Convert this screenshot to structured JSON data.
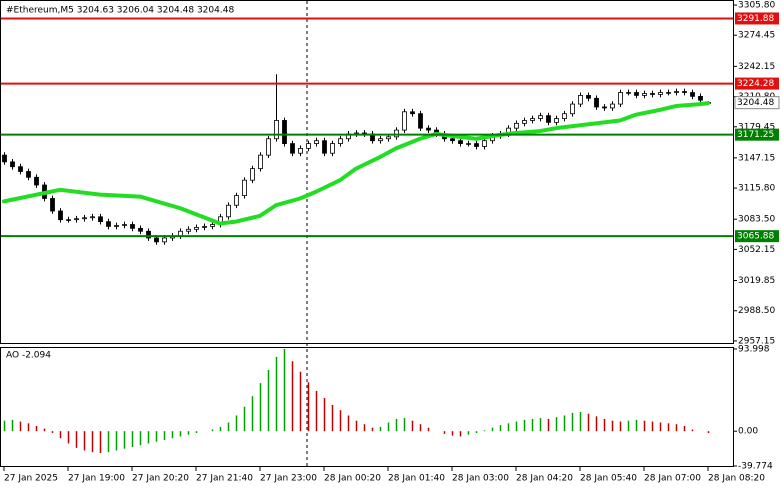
{
  "chart_data": {
    "type": "candlestick",
    "title": "#Ethereum,M5  3204.63 3206.04 3204.48 3204.48",
    "open": [
      3150,
      3143,
      3138,
      3133,
      3127,
      3119,
      3105,
      3092,
      3083,
      3083,
      3084,
      3085,
      3086,
      3081,
      3076,
      3077,
      3078,
      3074,
      3071,
      3064,
      3060,
      3064,
      3066,
      3071,
      3073,
      3075,
      3076,
      3078,
      3086,
      3098,
      3108,
      3124,
      3136,
      3150,
      3167,
      3186,
      3162,
      3152,
      3157,
      3162,
      3165,
      3152,
      3162,
      3167,
      3172,
      3173,
      3172,
      3165,
      3167,
      3169,
      3176,
      3195,
      3193,
      3178,
      3176,
      3172,
      3167,
      3165,
      3162,
      3162,
      3159,
      3165,
      3170,
      3172,
      3178,
      3183,
      3186,
      3188,
      3191,
      3184,
      3188,
      3193,
      3203,
      3212,
      3209,
      3200,
      3199,
      3203,
      3215,
      3215,
      3212,
      3214,
      3213,
      3215,
      3215,
      3216,
      3215,
      3211,
      3204.63
    ],
    "high": [
      3153,
      3146,
      3141,
      3136,
      3130,
      3122,
      3108,
      3095,
      3086,
      3087,
      3088,
      3089,
      3089,
      3084,
      3080,
      3081,
      3081,
      3077,
      3074,
      3067,
      3067,
      3069,
      3074,
      3076,
      3078,
      3079,
      3081,
      3089,
      3101,
      3111,
      3127,
      3139,
      3153,
      3170,
      3234,
      3189,
      3165,
      3160,
      3165,
      3168,
      3168,
      3165,
      3170,
      3175,
      3176,
      3176,
      3175,
      3170,
      3172,
      3179,
      3198,
      3198,
      3196,
      3181,
      3179,
      3175,
      3170,
      3168,
      3165,
      3165,
      3168,
      3173,
      3175,
      3181,
      3186,
      3189,
      3191,
      3194,
      3194,
      3191,
      3196,
      3206,
      3215,
      3215,
      3212,
      3203,
      3206,
      3218,
      3218,
      3218,
      3217,
      3217,
      3218,
      3218,
      3219,
      3219,
      3218,
      3214,
      3206.04
    ],
    "low": [
      3140,
      3135,
      3130,
      3124,
      3116,
      3102,
      3089,
      3080,
      3080,
      3080,
      3081,
      3082,
      3078,
      3073,
      3073,
      3074,
      3071,
      3068,
      3061,
      3057,
      3057,
      3061,
      3063,
      3068,
      3070,
      3072,
      3073,
      3075,
      3083,
      3095,
      3105,
      3121,
      3133,
      3147,
      3164,
      3159,
      3149,
      3149,
      3154,
      3159,
      3149,
      3149,
      3159,
      3164,
      3169,
      3169,
      3162,
      3162,
      3164,
      3166,
      3173,
      3190,
      3175,
      3173,
      3169,
      3164,
      3162,
      3159,
      3159,
      3156,
      3156,
      3162,
      3167,
      3169,
      3175,
      3180,
      3183,
      3185,
      3181,
      3181,
      3185,
      3190,
      3200,
      3206,
      3197,
      3196,
      3196,
      3200,
      3212,
      3209,
      3209,
      3210,
      3210,
      3212,
      3212,
      3212,
      3208,
      3204,
      3204.48
    ],
    "close": [
      3143,
      3138,
      3133,
      3127,
      3119,
      3105,
      3092,
      3083,
      3083,
      3084,
      3085,
      3086,
      3081,
      3076,
      3077,
      3078,
      3074,
      3071,
      3064,
      3060,
      3064,
      3066,
      3071,
      3073,
      3075,
      3076,
      3078,
      3086,
      3098,
      3108,
      3124,
      3136,
      3150,
      3167,
      3186,
      3162,
      3152,
      3157,
      3162,
      3165,
      3152,
      3162,
      3167,
      3172,
      3173,
      3172,
      3165,
      3167,
      3169,
      3176,
      3195,
      3193,
      3178,
      3176,
      3172,
      3167,
      3165,
      3162,
      3162,
      3159,
      3165,
      3170,
      3172,
      3178,
      3183,
      3186,
      3188,
      3191,
      3184,
      3188,
      3193,
      3203,
      3212,
      3209,
      3200,
      3199,
      3203,
      3215,
      3215,
      3212,
      3214,
      3213,
      3215,
      3215,
      3216,
      3215,
      3211,
      3207,
      3204.48
    ],
    "up_color": "#ffffff",
    "down_color": "#000000",
    "ma": {
      "color": "#22dd22",
      "x": [
        0,
        7,
        12,
        17,
        22,
        27,
        29,
        32,
        34,
        37,
        39,
        42,
        44,
        47,
        49,
        52,
        54,
        57,
        59,
        62,
        64,
        67,
        69,
        72,
        74,
        77,
        79,
        82,
        84,
        87,
        88
      ],
      "values": [
        3102,
        3114,
        3109,
        3107,
        3095,
        3079,
        3081,
        3087,
        3098,
        3105,
        3112,
        3124,
        3136,
        3148,
        3157,
        3167,
        3172,
        3169,
        3167,
        3171,
        3173,
        3175,
        3178,
        3181,
        3183,
        3186,
        3192,
        3197,
        3201,
        3203,
        3204
      ]
    },
    "ylim": [
      2955,
      3310
    ],
    "yticks": [
      {
        "value": 3305.8,
        "label": "3305.80"
      },
      3274.45,
      3242.15,
      {
        "value": 3210.8,
        "label": "3210.80"
      },
      3179.45,
      3147.15,
      {
        "value": 3115.8,
        "label": "3115.80"
      },
      {
        "value": 3083.5,
        "label": "3083.50"
      },
      3052.15,
      3019.85,
      {
        "value": 2988.5,
        "label": "2988.50"
      },
      2957.15
    ],
    "levels": [
      {
        "value": 3291.88,
        "color": "#e01010"
      },
      {
        "value": 3224.28,
        "color": "#e01010"
      },
      {
        "value": 3171.25,
        "color": "#008000"
      },
      {
        "value": 3065.88,
        "color": "#008000"
      }
    ],
    "x_labels": [
      "27 Jan 2025",
      "27 Jan 19:00",
      "27 Jan 20:20",
      "27 Jan 21:40",
      "27 Jan 23:00",
      "28 Jan 00:20",
      "28 Jan 01:40",
      "28 Jan 03:00",
      "28 Jan 04:20",
      "28 Jan 05:40",
      "28 Jan 07:00",
      "28 Jan 08:20"
    ],
    "ao": {
      "label": "AO -2.094",
      "up_color": "#00a000",
      "down_color": "#c00000",
      "values": [
        12,
        13,
        11,
        9,
        6,
        3,
        -2,
        -8,
        -14,
        -19,
        -22,
        -24,
        -25,
        -24,
        -22,
        -20,
        -18,
        -16,
        -14,
        -12,
        -10,
        -8,
        -6,
        -4,
        -2,
        0,
        2,
        5,
        10,
        18,
        28,
        40,
        55,
        70,
        85,
        94,
        80,
        68,
        56,
        46,
        38,
        30,
        24,
        18,
        12,
        8,
        4,
        5,
        10,
        14,
        15,
        12,
        8,
        4,
        0,
        -3,
        -5,
        -6,
        -4,
        -2,
        1,
        4,
        7,
        9,
        11,
        13,
        14,
        15,
        14,
        16,
        18,
        21,
        22,
        20,
        17,
        14,
        12,
        11,
        12,
        13,
        12,
        11,
        10,
        9,
        8,
        6,
        2,
        0,
        -2.094
      ],
      "ylim": [
        -39.774,
        93.998
      ],
      "yticks": [
        93.998,
        {
          "value": 0,
          "label": "0.00"
        },
        -39.774
      ]
    }
  }
}
